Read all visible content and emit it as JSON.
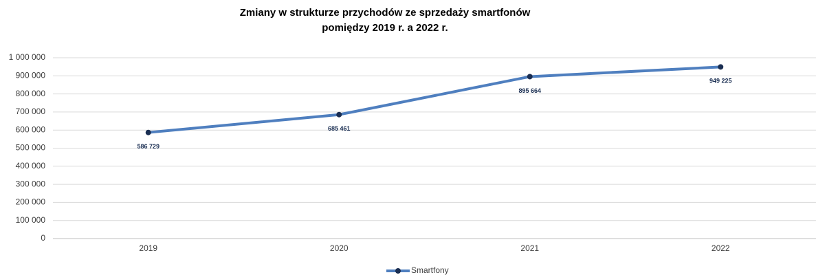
{
  "chart_data": {
    "type": "line",
    "title": [
      "Zmiany w strukturze przychodów ze sprzedaży smartfonów",
      "pomiędzy  2019 r. a  2022 r."
    ],
    "categories": [
      "2019",
      "2020",
      "2021",
      "2022"
    ],
    "series": [
      {
        "name": "Smartfony",
        "color": "#4f7fbf",
        "marker_color": "#1a2e52",
        "values": [
          586729,
          685461,
          895664,
          949225
        ],
        "value_labels": [
          "586 729",
          "685 461",
          "895 664",
          "949 225"
        ]
      }
    ],
    "ylim": [
      0,
      1000000
    ],
    "yticks": [
      0,
      {
        "value": 100000,
        "label": "100 000"
      },
      {
        "value": 200000,
        "label": "200 000"
      },
      {
        "value": 300000,
        "label": "300 000"
      },
      {
        "value": 400000,
        "label": "400 000"
      },
      {
        "value": 500000,
        "label": "500 000"
      },
      {
        "value": 600000,
        "label": "600 000"
      },
      {
        "value": 700000,
        "label": "700 000"
      },
      {
        "value": 800000,
        "label": "800 000"
      },
      {
        "value": 900000,
        "label": "900 000"
      },
      {
        "value": 1000000,
        "label": "1 000 000"
      }
    ],
    "grid": true,
    "legend": "bottom"
  }
}
